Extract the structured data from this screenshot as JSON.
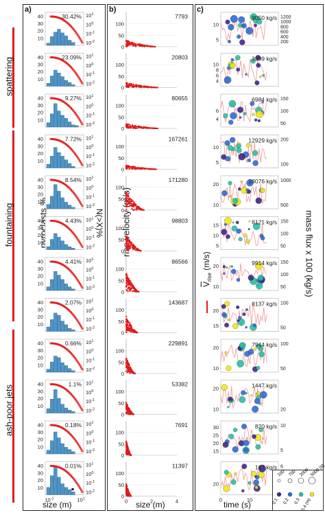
{
  "panel_letters": {
    "a": "a)",
    "b": "b)",
    "c": "c)"
  },
  "regimes": [
    "spattering",
    "fountaining",
    "ash-poor jets"
  ],
  "labels": {
    "a_ylabel": "pyroclasts %",
    "a_y2label": "N(>X)%",
    "a_xlabel": "size (m)",
    "b_ylabel": "rise velocity (m/s)",
    "b_xlabel": "size (m)",
    "c_xlabel": "time (s)",
    "c_ylabel": "V",
    "c_ylabel_sub": "rise",
    "c_ylabel_unit": "(m/s)",
    "c_y2label": "mass flux x 100 (kg/s)"
  },
  "legend": {
    "sizes": [
      "100",
      "700",
      "2000",
      "5000 (#)"
    ],
    "colors": [
      "0.1",
      "0.2",
      "0.3",
      "0.4 (m)"
    ],
    "color_hex": [
      "#3b2a8c",
      "#2f6bd6",
      "#26c2a8",
      "#f2e619"
    ]
  },
  "colors": {
    "red": "#e01a1a",
    "blue": "#4f95c9",
    "pink": "#f0a0a0"
  },
  "chart_data": [
    {
      "panel": "a",
      "type": "bar",
      "title": "",
      "xlabel": "size (m)",
      "ylabel": "pyroclasts %",
      "y2label": "N(>X)%",
      "x_ticks": [
        "10^-1",
        "10^1"
      ],
      "y_ticks": [
        0,
        10,
        20,
        30,
        40
      ],
      "y2_ticks": [
        "10^-2",
        "10^-1",
        "10^0",
        "10^1"
      ],
      "rows": [
        {
          "percent": "30.42%",
          "hist": [
            3,
            12,
            18,
            22,
            17,
            13,
            7,
            4
          ]
        },
        {
          "percent": "23.09%",
          "hist": [
            4,
            14,
            22,
            18,
            13,
            8,
            5,
            2
          ]
        },
        {
          "percent": "9.27%",
          "hist": [
            6,
            18,
            32,
            22,
            16,
            12,
            7,
            3,
            2
          ]
        },
        {
          "percent": "7.72%",
          "hist": [
            5,
            16,
            28,
            21,
            16,
            11,
            6,
            2
          ]
        },
        {
          "percent": "8.54%",
          "hist": [
            6,
            17,
            33,
            24,
            15,
            9,
            5,
            2
          ]
        },
        {
          "percent": "4.43%",
          "hist": [
            4,
            14,
            22,
            17,
            12,
            7,
            4,
            2
          ]
        },
        {
          "percent": "4.41%",
          "hist": [
            5,
            15,
            26,
            21,
            15,
            9,
            5,
            2
          ]
        },
        {
          "percent": "2.07%",
          "hist": [
            6,
            16,
            25,
            22,
            14,
            9,
            4,
            2
          ]
        },
        {
          "percent": "0.66%",
          "hist": [
            4,
            14,
            22,
            20,
            13,
            9,
            5,
            2
          ]
        },
        {
          "percent": "1.1%",
          "hist": [
            6,
            19,
            32,
            20,
            12,
            7,
            4,
            2
          ]
        },
        {
          "percent": "0.18%",
          "hist": [
            5,
            18,
            30,
            22,
            14,
            9,
            6,
            3
          ]
        },
        {
          "percent": "0.01%",
          "hist": [
            10,
            26,
            38,
            24,
            15,
            10,
            7,
            4
          ]
        }
      ]
    },
    {
      "panel": "b",
      "type": "scatter",
      "title": "",
      "xlabel": "size (m)",
      "ylabel": "rise velocity (m/s)",
      "xlim": [
        0,
        4
      ],
      "ylim": [
        0,
        150
      ],
      "x_ticks": [
        0,
        2,
        4
      ],
      "y_ticks": [
        0,
        50,
        100
      ],
      "rows": [
        {
          "count": "7793",
          "vmax": 28,
          "xmax": 2.3
        },
        {
          "count": "20803",
          "vmax": 22,
          "xmax": 2.5
        },
        {
          "count": "80655",
          "vmax": 20,
          "xmax": 2.5
        },
        {
          "count": "167261",
          "vmax": 18,
          "xmax": 2.4
        },
        {
          "count": "171280",
          "vmax": 80,
          "xmax": 1.4
        },
        {
          "count": "98803",
          "vmax": 70,
          "xmax": 1.2
        },
        {
          "count": "86566",
          "vmax": 85,
          "xmax": 1.0
        },
        {
          "count": "143687",
          "vmax": 72,
          "xmax": 0.9
        },
        {
          "count": "229891",
          "vmax": 70,
          "xmax": 0.7
        },
        {
          "count": "53382",
          "vmax": 55,
          "xmax": 0.6
        },
        {
          "count": "7691",
          "vmax": 65,
          "xmax": 0.4
        },
        {
          "count": "11397",
          "vmax": 55,
          "xmax": 0.4
        }
      ]
    },
    {
      "panel": "c",
      "type": "line",
      "title": "",
      "xlabel": "time (s)",
      "ylabel": "V rise (m/s)",
      "y2label": "mass flux x 100 (kg/s)",
      "xlim": [
        0,
        20
      ],
      "x_ticks": [
        0,
        10,
        20
      ],
      "rows": [
        {
          "flux": "9050 kg/s",
          "y_ticks": [
            5,
            10
          ],
          "y2_ticks": [
            200,
            400,
            600,
            800,
            1000,
            1200
          ],
          "base": 4,
          "amp": 8
        },
        {
          "flux": "3999 kg/s",
          "y_ticks": [
            4,
            6,
            8,
            10
          ],
          "y2_ticks": [],
          "base": 4,
          "amp": 7
        },
        {
          "flux": "6984 kg/s",
          "y_ticks": [
            4,
            6
          ],
          "y2_ticks": [
            50,
            100,
            150
          ],
          "base": 4,
          "amp": 3
        },
        {
          "flux": "12929 kg/s",
          "y_ticks": [
            5,
            10
          ],
          "y2_ticks": [
            100,
            200
          ],
          "base": 5,
          "amp": 6
        },
        {
          "flux": "28076 kg/s",
          "y_ticks": [
            10,
            20
          ],
          "y2_ticks": [
            500,
            1000
          ],
          "base": 8,
          "amp": 15
        },
        {
          "flux": "8121 kg/s",
          "y_ticks": [
            5,
            10,
            15
          ],
          "y2_ticks": [
            50,
            100,
            150
          ],
          "base": 5,
          "amp": 10
        },
        {
          "flux": "9914 kg/s",
          "y_ticks": [
            10,
            20
          ],
          "y2_ticks": [
            50,
            100,
            150
          ],
          "base": 10,
          "amp": 12
        },
        {
          "flux": "8137 kg/s",
          "y_ticks": [
            15,
            20
          ],
          "y2_ticks": [
            50,
            100
          ],
          "base": 14,
          "amp": 8
        },
        {
          "flux": "7944 kg/s",
          "y_ticks": [
            10,
            20
          ],
          "y2_ticks": [
            50,
            100
          ],
          "base": 10,
          "amp": 12
        },
        {
          "flux": "1447 kg/s",
          "y_ticks": [
            10,
            20
          ],
          "y2_ticks": [
            20
          ],
          "base": 8,
          "amp": 12
        },
        {
          "flux": "820 kg/s",
          "y_ticks": [
            15,
            20,
            25,
            30
          ],
          "y2_ticks": [
            5,
            10
          ],
          "base": 15,
          "amp": 14
        },
        {
          "flux": "167 kg/s",
          "y_ticks": [
            20
          ],
          "y2_ticks": [
            2,
            4,
            6
          ],
          "base": 14,
          "amp": 12
        }
      ]
    }
  ]
}
